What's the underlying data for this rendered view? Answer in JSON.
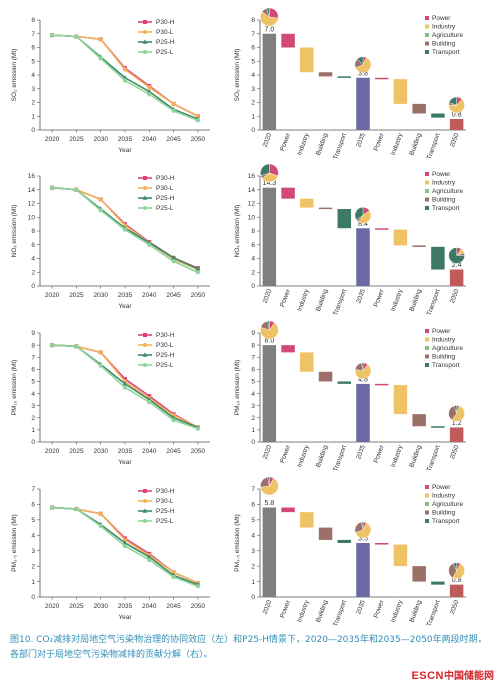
{
  "caption": "图10. CO₂减排对局地空气污染物治理的协同效应（左）和P25-H情景下，2020—2035年和2035—2050年两段时期，各部门对于局地空气污染物减排的贡献分解（右）。",
  "logo": {
    "text_latin": "ESCN",
    "text_cn": "中国储能网"
  },
  "colors": {
    "P30-H": "#d9457a",
    "P30-L": "#f2b25c",
    "P25-H": "#3f8a67",
    "P25-L": "#8fd49a",
    "Power": "#d24a73",
    "Industry": "#f0c266",
    "Agriculture": "#7dc47f",
    "Building": "#9c6f68",
    "Transport": "#3c7a67",
    "total": "#7f7f7f",
    "total2035": "#6b6aa6",
    "total2050": "#c05b5b"
  },
  "chart_data": [
    {
      "type": "line",
      "id": "so2-line",
      "ylabel": "SO₂ emission (Mt)",
      "xlabel": "Year",
      "x": [
        2020,
        2025,
        2030,
        2035,
        2040,
        2045,
        2050
      ],
      "ylim": [
        0,
        8
      ],
      "yticks": [
        0,
        1,
        2,
        3,
        4,
        5,
        6,
        7,
        8
      ],
      "series": [
        {
          "name": "P30-H",
          "values": [
            6.9,
            6.8,
            6.6,
            4.5,
            3.2,
            1.9,
            1.0
          ]
        },
        {
          "name": "P30-L",
          "values": [
            6.9,
            6.8,
            6.6,
            4.4,
            3.1,
            1.9,
            1.0
          ]
        },
        {
          "name": "P25-H",
          "values": [
            6.9,
            6.8,
            5.3,
            3.8,
            2.8,
            1.5,
            0.8
          ]
        },
        {
          "name": "P25-L",
          "values": [
            6.9,
            6.8,
            5.2,
            3.6,
            2.6,
            1.4,
            0.7
          ]
        }
      ]
    },
    {
      "type": "waterfall",
      "id": "so2-wf",
      "ylabel": "SO₂ emission (Mt)",
      "ylim": [
        0,
        8
      ],
      "yticks": [
        0,
        1,
        2,
        3,
        4,
        5,
        6,
        7,
        8
      ],
      "categories": [
        "2020",
        "Power",
        "Industry",
        "Building",
        "Transport",
        "2035",
        "Power",
        "Industry",
        "Building",
        "Transport",
        "2050"
      ],
      "totals": {
        "2020": 7.0,
        "2035": 3.8,
        "2050": 0.8
      },
      "changes_2020_2035": {
        "Power": -1.0,
        "Industry": -1.8,
        "Building": -0.3,
        "Transport": -0.1
      },
      "changes_2035_2050": {
        "Power": -0.1,
        "Industry": -1.8,
        "Building": -0.7,
        "Transport": -0.3
      },
      "labels": [
        "7.0",
        "3.8",
        "0.8"
      ],
      "pies": {
        "2020": [
          0.27,
          0.58,
          0.0,
          0.1,
          0.05
        ],
        "2035": [
          0.07,
          0.62,
          0.0,
          0.18,
          0.13
        ],
        "2050": [
          0.12,
          0.63,
          0.0,
          0.05,
          0.2
        ]
      }
    },
    {
      "type": "line",
      "id": "nox-line",
      "ylabel": "NOₓ emission (Mt)",
      "xlabel": "Year",
      "x": [
        2020,
        2025,
        2030,
        2035,
        2040,
        2045,
        2050
      ],
      "ylim": [
        0,
        16
      ],
      "yticks": [
        0,
        2,
        4,
        6,
        8,
        10,
        12,
        14,
        16
      ],
      "series": [
        {
          "name": "P30-H",
          "values": [
            14.3,
            14.0,
            12.6,
            9.0,
            6.4,
            4.1,
            2.6
          ]
        },
        {
          "name": "P30-L",
          "values": [
            14.3,
            14.0,
            12.6,
            8.8,
            6.3,
            3.9,
            2.4
          ]
        },
        {
          "name": "P25-H",
          "values": [
            14.3,
            14.0,
            11.2,
            8.4,
            6.3,
            4.1,
            2.5
          ]
        },
        {
          "name": "P25-L",
          "values": [
            14.3,
            14.0,
            11.0,
            8.2,
            6.0,
            3.6,
            2.0
          ]
        }
      ]
    },
    {
      "type": "waterfall",
      "id": "nox-wf",
      "ylabel": "NOₓ emission (Mt)",
      "ylim": [
        0,
        16
      ],
      "yticks": [
        0,
        2,
        4,
        6,
        8,
        10,
        12,
        14,
        16
      ],
      "categories": [
        "2020",
        "Power",
        "Industry",
        "Building",
        "Transport",
        "2035",
        "Power",
        "Industry",
        "Building",
        "Transport",
        "2050"
      ],
      "totals": {
        "2020": 14.3,
        "2035": 8.4,
        "2050": 2.4
      },
      "changes_2020_2035": {
        "Power": -1.6,
        "Industry": -1.3,
        "Building": -0.2,
        "Transport": -2.8
      },
      "changes_2035_2050": {
        "Power": -0.2,
        "Industry": -2.3,
        "Building": -0.2,
        "Transport": -3.3
      },
      "labels": [
        "14.3",
        "8.4",
        "2.4"
      ],
      "pies": {
        "2020": [
          0.3,
          0.35,
          0.0,
          0.05,
          0.3
        ],
        "2035": [
          0.15,
          0.45,
          0.0,
          0.05,
          0.35
        ],
        "2050": [
          0.1,
          0.1,
          0.0,
          0.05,
          0.75
        ]
      }
    },
    {
      "type": "line",
      "id": "pm10-line",
      "ylabel": "PM₁₀ emission (Mt)",
      "xlabel": "Year",
      "x": [
        2020,
        2025,
        2030,
        2035,
        2040,
        2045,
        2050
      ],
      "ylim": [
        0,
        9
      ],
      "yticks": [
        0,
        1,
        2,
        3,
        4,
        5,
        6,
        7,
        8,
        9
      ],
      "series": [
        {
          "name": "P30-H",
          "values": [
            8.0,
            7.9,
            7.4,
            5.2,
            3.8,
            2.3,
            1.2
          ]
        },
        {
          "name": "P30-L",
          "values": [
            8.0,
            7.9,
            7.4,
            5.0,
            3.6,
            2.2,
            1.2
          ]
        },
        {
          "name": "P25-H",
          "values": [
            8.0,
            7.9,
            6.4,
            4.8,
            3.5,
            2.0,
            1.2
          ]
        },
        {
          "name": "P25-L",
          "values": [
            8.0,
            7.9,
            6.3,
            4.5,
            3.3,
            1.8,
            1.1
          ]
        }
      ]
    },
    {
      "type": "waterfall",
      "id": "pm10-wf",
      "ylabel": "PM₁₀ emission (Mt)",
      "ylim": [
        0,
        9
      ],
      "yticks": [
        0,
        1,
        2,
        3,
        4,
        5,
        6,
        7,
        8,
        9
      ],
      "categories": [
        "2020",
        "Power",
        "Industry",
        "Building",
        "Transport",
        "2035",
        "Power",
        "Industry",
        "Building",
        "Transport",
        "2050"
      ],
      "totals": {
        "2020": 8.0,
        "2035": 4.8,
        "2050": 1.2
      },
      "changes_2020_2035": {
        "Power": -0.6,
        "Industry": -1.6,
        "Building": -0.8,
        "Transport": -0.2
      },
      "changes_2035_2050": {
        "Power": -0.1,
        "Industry": -2.4,
        "Building": -1.0,
        "Transport": -0.1
      },
      "labels": [
        "8.0",
        "4.8",
        "1.2"
      ],
      "pies": {
        "2020": [
          0.1,
          0.7,
          0.0,
          0.17,
          0.03
        ],
        "2035": [
          0.1,
          0.68,
          0.0,
          0.19,
          0.03
        ],
        "2050": [
          0.05,
          0.55,
          0.0,
          0.35,
          0.05
        ]
      }
    },
    {
      "type": "line",
      "id": "pm25-line",
      "ylabel": "PM₂.₅ emission (Mt)",
      "xlabel": "Year",
      "x": [
        2020,
        2025,
        2030,
        2035,
        2040,
        2045,
        2050
      ],
      "ylim": [
        0,
        7
      ],
      "yticks": [
        0,
        1,
        2,
        3,
        4,
        5,
        6,
        7
      ],
      "series": [
        {
          "name": "P30-H",
          "values": [
            5.8,
            5.7,
            5.4,
            3.8,
            2.8,
            1.6,
            0.9
          ]
        },
        {
          "name": "P30-L",
          "values": [
            5.8,
            5.7,
            5.4,
            3.7,
            2.7,
            1.6,
            0.9
          ]
        },
        {
          "name": "P25-H",
          "values": [
            5.8,
            5.7,
            4.7,
            3.5,
            2.6,
            1.4,
            0.8
          ]
        },
        {
          "name": "P25-L",
          "values": [
            5.8,
            5.7,
            4.6,
            3.3,
            2.4,
            1.3,
            0.7
          ]
        }
      ]
    },
    {
      "type": "waterfall",
      "id": "pm25-wf",
      "ylabel": "PM₂.₅ emission (Mt)",
      "ylim": [
        0,
        7
      ],
      "yticks": [
        0,
        1,
        2,
        3,
        4,
        5,
        6,
        7
      ],
      "categories": [
        "2020",
        "Power",
        "Industry",
        "Building",
        "Transport",
        "2035",
        "Power",
        "Industry",
        "Building",
        "Transport",
        "2050"
      ],
      "totals": {
        "2020": 5.8,
        "2035": 3.5,
        "2050": 0.8
      },
      "changes_2020_2035": {
        "Power": -0.3,
        "Industry": -1.0,
        "Building": -0.8,
        "Transport": -0.2
      },
      "changes_2035_2050": {
        "Power": -0.1,
        "Industry": -1.4,
        "Building": -1.0,
        "Transport": -0.2
      },
      "labels": [
        "5.8",
        "3.5",
        "0.8"
      ],
      "pies": {
        "2020": [
          0.08,
          0.65,
          0.0,
          0.24,
          0.03
        ],
        "2035": [
          0.07,
          0.63,
          0.0,
          0.27,
          0.03
        ],
        "2050": [
          0.08,
          0.5,
          0.0,
          0.35,
          0.07
        ]
      }
    }
  ],
  "legend_line": [
    "P30-H",
    "P30-L",
    "P25-H",
    "P25-L"
  ],
  "legend_sector": [
    "Power",
    "Industry",
    "Agriculture",
    "Building",
    "Transport"
  ]
}
